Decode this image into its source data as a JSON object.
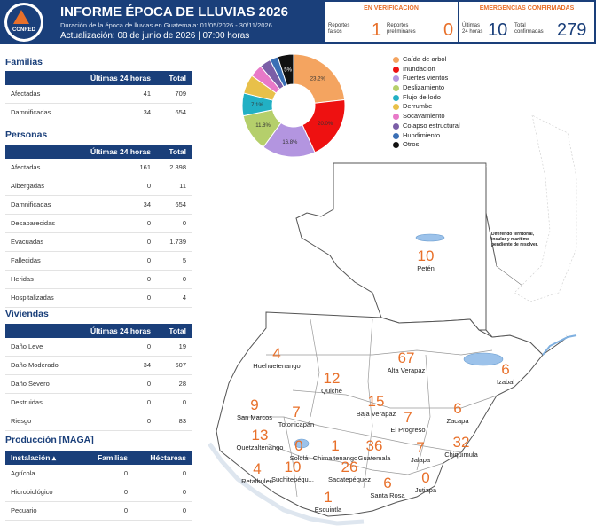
{
  "header": {
    "title": "INFORME ÉPOCA DE LLUVIAS 2026",
    "subtitle": "Duración de la época de lluvias en Guatemala: 01/05/2026 - 30/11/2026",
    "updated": "Actualización: 08 de junio de 2026 | 07:00 horas",
    "logo_text": "CONRED"
  },
  "kpis": {
    "verification": {
      "title": "EN VERIFICACIÓN",
      "false_label_1": "Reportes",
      "false_label_2": "falsos",
      "false_value": "1",
      "prelim_label_1": "Reportes",
      "prelim_label_2": "preliminares",
      "prelim_value": "0"
    },
    "emergencies": {
      "title": "EMERGENCIAS CONFIRMADAS",
      "last24_label_1": "Últimas",
      "last24_label_2": "24 horas",
      "last24_value": "10",
      "total_label_1": "Total",
      "total_label_2": "confirmadas",
      "total_value": "279"
    }
  },
  "families": {
    "title": "Familias",
    "col_last24": "Últimas 24 horas",
    "col_total": "Total",
    "rows": [
      {
        "label": "Afectadas",
        "last24": "41",
        "total": "709"
      },
      {
        "label": "Damnificadas",
        "last24": "34",
        "total": "654"
      }
    ]
  },
  "people": {
    "title": "Personas",
    "col_last24": "Últimas 24 horas",
    "col_total": "Total",
    "rows": [
      {
        "label": "Afectadas",
        "last24": "161",
        "total": "2.898"
      },
      {
        "label": "Albergadas",
        "last24": "0",
        "total": "11"
      },
      {
        "label": "Damnificadas",
        "last24": "34",
        "total": "654"
      },
      {
        "label": "Desaparecidas",
        "last24": "0",
        "total": "0"
      },
      {
        "label": "Evacuadas",
        "last24": "0",
        "total": "1.739"
      },
      {
        "label": "Fallecidas",
        "last24": "0",
        "total": "5"
      },
      {
        "label": "Heridas",
        "last24": "0",
        "total": "0"
      },
      {
        "label": "Hospitalizadas",
        "last24": "0",
        "total": "4"
      }
    ]
  },
  "housing": {
    "title": "Viviendas",
    "col_last24": "Últimas 24 horas",
    "col_total": "Total",
    "rows": [
      {
        "label": "Daño Leve",
        "last24": "0",
        "total": "19"
      },
      {
        "label": "Daño Moderado",
        "last24": "34",
        "total": "607"
      },
      {
        "label": "Daño Severo",
        "last24": "0",
        "total": "28"
      },
      {
        "label": "Destruidas",
        "last24": "0",
        "total": "0"
      },
      {
        "label": "Riesgo",
        "last24": "0",
        "total": "83"
      }
    ]
  },
  "production": {
    "title": "Producción [MAGA]",
    "col_installation": "Instalación",
    "sort_icon": "sort-up-icon",
    "col_families": "Familias",
    "col_hectares": "Héctareas",
    "rows": [
      {
        "label": "Agrícola",
        "families": "0",
        "hectares": "0"
      },
      {
        "label": "Hidrobiológico",
        "families": "0",
        "hectares": "0"
      },
      {
        "label": "Pecuario",
        "families": "0",
        "hectares": "0"
      }
    ]
  },
  "chart_data": {
    "type": "pie",
    "donut": true,
    "legend_position": "right",
    "slices": [
      {
        "label": "Caída de arbol",
        "value": 23.2,
        "color": "#f4a460",
        "shown_label": "23.2%"
      },
      {
        "label": "Inundacion",
        "value": 20.0,
        "color": "#ee1111",
        "shown_label": "20.0%"
      },
      {
        "label": "Fuertes vientos",
        "value": 16.8,
        "color": "#b395e0",
        "shown_label": "16.8%"
      },
      {
        "label": "Deslizamiento",
        "value": 11.8,
        "color": "#b5cf6b",
        "shown_label": "11.8%"
      },
      {
        "label": "Flujo de lodo",
        "value": 7.1,
        "color": "#22b0c4",
        "shown_label": "7.1%"
      },
      {
        "label": "Derrumbe",
        "value": 6.0,
        "color": "#e8c04a",
        "shown_label": ""
      },
      {
        "label": "Socavamiento",
        "value": 4.0,
        "color": "#e879c8",
        "shown_label": ""
      },
      {
        "label": "Colapso estructural",
        "value": 3.5,
        "color": "#7b5ea7",
        "shown_label": ""
      },
      {
        "label": "Hundimiento",
        "value": 2.6,
        "color": "#3a6fb5",
        "shown_label": ""
      },
      {
        "label": "Otros",
        "value": 5.0,
        "color": "#111111",
        "shown_label": "5%"
      }
    ]
  },
  "map": {
    "note": "Diferendo territorial, insular y marítimo pendiente de resolver.",
    "departments": [
      {
        "name": "Petén",
        "count": "10"
      },
      {
        "name": "Huehuetenango",
        "count": "4"
      },
      {
        "name": "Alta Verapaz",
        "count": "67"
      },
      {
        "name": "Izabal",
        "count": "6"
      },
      {
        "name": "Quiché",
        "count": "12"
      },
      {
        "name": "San Marcos",
        "count": "9"
      },
      {
        "name": "Totonicapán",
        "count": "7"
      },
      {
        "name": "Baja Verapaz",
        "count": "15"
      },
      {
        "name": "El Progreso",
        "count": "7"
      },
      {
        "name": "Zacapa",
        "count": "6"
      },
      {
        "name": "Quetzaltenango",
        "count": "13"
      },
      {
        "name": "Sololá",
        "count": "0"
      },
      {
        "name": "Chimaltenango",
        "count": "1"
      },
      {
        "name": "Guatemala",
        "count": "36"
      },
      {
        "name": "Jalapa",
        "count": "7"
      },
      {
        "name": "Chiquimula",
        "count": "32"
      },
      {
        "name": "Retalhuleu",
        "count": "4"
      },
      {
        "name": "Suchitepéqu...",
        "count": "10"
      },
      {
        "name": "Sacatepéquez",
        "count": "26"
      },
      {
        "name": "Santa Rosa",
        "count": "6"
      },
      {
        "name": "Jutiapa",
        "count": "0"
      },
      {
        "name": "Escuintla",
        "count": "1"
      }
    ]
  }
}
